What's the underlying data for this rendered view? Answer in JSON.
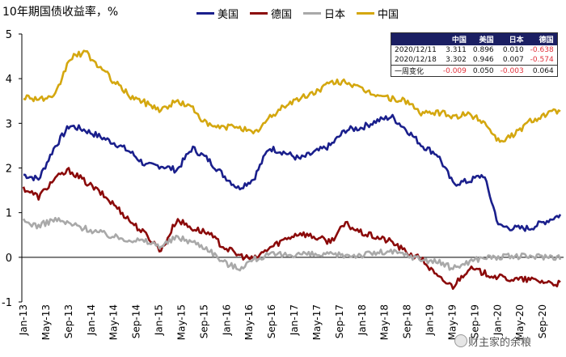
{
  "chart_data": {
    "type": "line",
    "title": "10年期国债收益率，%",
    "ylim": [
      -1,
      5
    ],
    "yticks": [
      5,
      4,
      3,
      2,
      1,
      0,
      -1
    ],
    "x_tick_labels": [
      "Jan-13",
      "May-13",
      "Sep-13",
      "Jan-14",
      "May-14",
      "Sep-14",
      "Jan-15",
      "May-15",
      "Sep-15",
      "Jan-16",
      "May-16",
      "Sep-16",
      "Jan-17",
      "May-17",
      "Sep-17",
      "Jan-18",
      "May-18",
      "Sep-18",
      "Jan-19",
      "May-19",
      "Sep-19",
      "Jan-20",
      "May-20",
      "Sep-20"
    ],
    "series": [
      {
        "name": "美国",
        "color": "#1a1f8c",
        "values": [
          1.85,
          1.75,
          2.45,
          2.95,
          2.85,
          2.7,
          2.55,
          2.35,
          2.05,
          2.05,
          1.95,
          2.45,
          2.2,
          1.85,
          1.55,
          1.75,
          2.45,
          2.35,
          2.2,
          2.35,
          2.5,
          2.85,
          2.9,
          3.05,
          3.15,
          2.85,
          2.5,
          2.3,
          1.65,
          1.7,
          1.85,
          0.7,
          0.65,
          0.65,
          0.8,
          0.95
        ]
      },
      {
        "name": "德国",
        "color": "#8b0a0a",
        "values": [
          1.55,
          1.35,
          1.75,
          1.95,
          1.7,
          1.45,
          1.15,
          0.8,
          0.5,
          0.15,
          0.85,
          0.65,
          0.55,
          0.25,
          0.05,
          -0.05,
          0.2,
          0.4,
          0.55,
          0.45,
          0.35,
          0.75,
          0.55,
          0.45,
          0.35,
          0.1,
          -0.05,
          -0.45,
          -0.65,
          -0.25,
          -0.35,
          -0.45,
          -0.5,
          -0.5,
          -0.55,
          -0.6
        ]
      },
      {
        "name": "日本",
        "color": "#a9a9a9",
        "values": [
          0.8,
          0.7,
          0.85,
          0.75,
          0.65,
          0.55,
          0.45,
          0.4,
          0.35,
          0.25,
          0.45,
          0.35,
          0.2,
          -0.1,
          -0.25,
          -0.05,
          0.05,
          0.05,
          0.08,
          0.05,
          0.05,
          0.05,
          0.05,
          0.1,
          0.12,
          0.05,
          -0.05,
          -0.1,
          -0.25,
          -0.1,
          0.0,
          0.0,
          0.02,
          0.02,
          0.02,
          0.01
        ]
      },
      {
        "name": "中国",
        "color": "#d4a70f",
        "values": [
          3.6,
          3.55,
          3.55,
          4.45,
          4.6,
          4.25,
          3.9,
          3.6,
          3.45,
          3.3,
          3.5,
          3.35,
          2.95,
          2.9,
          2.95,
          2.75,
          3.1,
          3.4,
          3.55,
          3.7,
          3.9,
          3.95,
          3.75,
          3.65,
          3.55,
          3.5,
          3.2,
          3.25,
          3.15,
          3.2,
          3.05,
          2.6,
          2.75,
          3.05,
          3.2,
          3.3
        ]
      }
    ]
  },
  "summary_table": {
    "headers": [
      "",
      "中国",
      "美国",
      "日本",
      "德国"
    ],
    "rows": [
      {
        "label": "2020/12/11",
        "cells": [
          "3.311",
          "0.896",
          "0.010",
          "-0.638"
        ]
      },
      {
        "label": "2020/12/18",
        "cells": [
          "3.302",
          "0.946",
          "0.007",
          "-0.574"
        ]
      },
      {
        "label": "一周变化",
        "cells": [
          "-0.009",
          "0.050",
          "-0.003",
          "0.064"
        ]
      }
    ]
  },
  "watermark": "财主家的余粮"
}
